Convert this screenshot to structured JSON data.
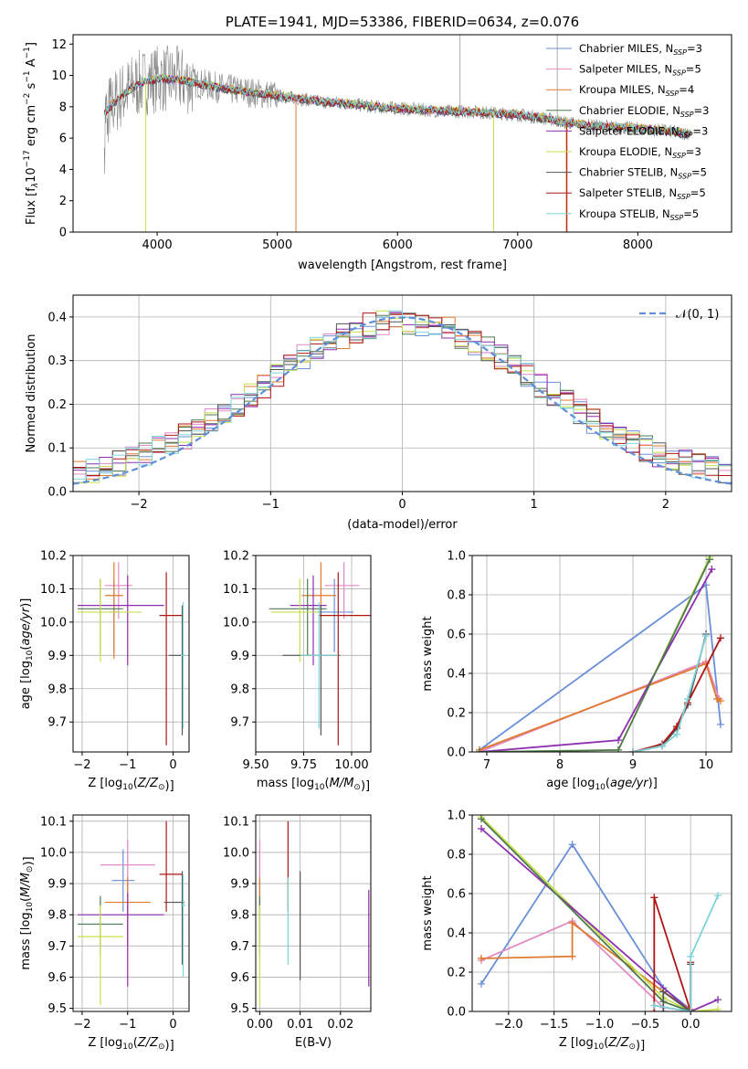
{
  "colors": {
    "chabrier_miles": "#6a8fd6",
    "salpeter_miles": "#e28ac3",
    "kroupa_miles": "#e07a2e",
    "chabrier_elodie": "#4f7a50",
    "salpeter_elodie": "#8f2fb0",
    "kroupa_elodie": "#c6e04a",
    "chabrier_stelib": "#555555",
    "salpeter_stelib": "#b01515",
    "kroupa_stelib": "#7dd3d8",
    "observed": "#888888",
    "normal": "#5f8fd8"
  },
  "chart_data": [
    {
      "id": "spectrum",
      "type": "line",
      "title": "PLATE=1941, MJD=53386, FIBERID=0634, z=0.076",
      "xlabel": "wavelength [Angstrom, rest frame]",
      "ylabel": "Flux [f",
      "ylabel_parts": [
        "Flux [f",
        "λ",
        "10",
        "−17",
        " erg cm",
        "−2",
        " s",
        "−1",
        " A",
        "−1",
        "]"
      ],
      "xlim": [
        3300,
        8780
      ],
      "ylim": [
        0,
        12.6
      ],
      "xticks": [
        4000,
        5000,
        6000,
        7000,
        8000
      ],
      "yticks": [
        0,
        2,
        4,
        6,
        8,
        10,
        12
      ],
      "grid": false,
      "legend_position": "top-right",
      "continuum": {
        "x": [
          3560,
          3700,
          3800,
          3900,
          4000,
          4200,
          4400,
          4600,
          4800,
          5000,
          5200,
          5400,
          5600,
          5800,
          6000,
          6200,
          6400,
          6600,
          6800,
          7000,
          7200,
          7400,
          7600,
          7800,
          8000,
          8200,
          8400
        ],
        "y": [
          7.6,
          8.7,
          9.3,
          9.6,
          9.8,
          9.7,
          9.4,
          9.1,
          8.9,
          8.7,
          8.5,
          8.3,
          8.2,
          8.0,
          7.9,
          7.8,
          7.7,
          7.7,
          7.6,
          7.5,
          7.3,
          7.0,
          6.8,
          6.7,
          6.6,
          6.5,
          6.3
        ]
      },
      "series": [
        {
          "label": "Chabrier MILES",
          "nssp": "3",
          "color": "#6a8fd6"
        },
        {
          "label": "Salpeter MILES",
          "nssp": "5",
          "color": "#e28ac3"
        },
        {
          "label": "Kroupa MILES",
          "nssp": "4",
          "color": "#e07a2e"
        },
        {
          "label": "Chabrier ELODIE",
          "nssp": "3",
          "color": "#4f7a50"
        },
        {
          "label": "Salpeter ELODIE",
          "nssp": "3",
          "color": "#8f2fb0"
        },
        {
          "label": "Kroupa ELODIE",
          "nssp": "3",
          "color": "#c6e04a"
        },
        {
          "label": "Chabrier STELIB",
          "nssp": "5",
          "color": "#555555"
        },
        {
          "label": "Salpeter STELIB",
          "nssp": "5",
          "color": "#b01515"
        },
        {
          "label": "Kroupa STELIB",
          "nssp": "5",
          "color": "#7dd3d8"
        }
      ],
      "legend_prefix_sub": "N",
      "legend_sub": "SSP"
    },
    {
      "id": "residuals",
      "type": "bar",
      "xlabel": "(data-model)/error",
      "ylabel": "Normed distribution",
      "xlim": [
        -2.5,
        2.5
      ],
      "ylim": [
        0,
        0.45
      ],
      "xticks": [
        -2,
        -1,
        0,
        1,
        2
      ],
      "yticks": [
        0.0,
        0.1,
        0.2,
        0.3,
        0.4
      ],
      "grid": true,
      "legend_position": "top-right",
      "normal_label": "𝒩(0, 1)",
      "bin_width": 0.1
    },
    {
      "id": "age-vs-z",
      "type": "scatter",
      "xlabel": "Z [log",
      "ylabel": "age  [log",
      "xlim": [
        -2.2,
        0.35
      ],
      "ylim": [
        9.61,
        10.2
      ],
      "xticks": [
        -2,
        -1,
        0
      ],
      "yticks": [
        9.7,
        9.8,
        9.9,
        10.0,
        10.1,
        10.2
      ],
      "grid": true,
      "points": [
        {
          "x": -1.3,
          "y": 10.03,
          "xerr": [
            0.1,
            0.1
          ],
          "yerr": [
            0.12,
            0.1
          ],
          "color": "#6a8fd6"
        },
        {
          "x": -1.2,
          "y": 10.11,
          "xerr": [
            0.3,
            0.3
          ],
          "yerr": [
            0.1,
            0.07
          ],
          "color": "#e28ac3"
        },
        {
          "x": -1.3,
          "y": 10.08,
          "xerr": [
            0.2,
            0.2
          ],
          "yerr": [
            0.19,
            0.1
          ],
          "color": "#e07a2e"
        },
        {
          "x": -1.6,
          "y": 10.04,
          "xerr": [
            0.5,
            0.5
          ],
          "yerr": [
            0.14,
            0.09
          ],
          "color": "#4f7a50"
        },
        {
          "x": -1.0,
          "y": 10.05,
          "xerr": [
            1.1,
            0.8
          ],
          "yerr": [
            0.18,
            0.09
          ],
          "color": "#8f2fb0"
        },
        {
          "x": -1.6,
          "y": 10.03,
          "xerr": [
            0.5,
            0.9
          ],
          "yerr": [
            0.15,
            0.1
          ],
          "color": "#c6e04a"
        },
        {
          "x": 0.2,
          "y": 9.9,
          "xerr": [
            0.3,
            0.05
          ],
          "yerr": [
            0.24,
            0.15
          ],
          "color": "#555555"
        },
        {
          "x": -0.15,
          "y": 10.02,
          "xerr": [
            0.15,
            0.35
          ],
          "yerr": [
            0.39,
            0.13
          ],
          "color": "#b01515"
        },
        {
          "x": 0.22,
          "y": 9.9,
          "xerr": [
            0.05,
            0.05
          ],
          "yerr": [
            0.22,
            0.16
          ],
          "color": "#7dd3d8"
        }
      ]
    },
    {
      "id": "age-vs-mass",
      "type": "scatter",
      "xlabel": "mass [log",
      "ylabel": "",
      "xlim": [
        9.5,
        10.1
      ],
      "ylim": [
        9.61,
        10.2
      ],
      "xticks": [
        9.5,
        9.75,
        10.0
      ],
      "tick_labels_x": [
        "9.50",
        "9.75",
        "10.00"
      ],
      "yticks": [
        9.7,
        9.8,
        9.9,
        10.0,
        10.1,
        10.2
      ],
      "grid": true,
      "points": [
        {
          "x": 9.91,
          "y": 10.03,
          "xerr": [
            0.1,
            0.1
          ],
          "yerr": [
            0.12,
            0.1
          ],
          "color": "#6a8fd6"
        },
        {
          "x": 9.96,
          "y": 10.11,
          "xerr": [
            0.1,
            0.08
          ],
          "yerr": [
            0.1,
            0.07
          ],
          "color": "#e28ac3"
        },
        {
          "x": 9.84,
          "y": 10.08,
          "xerr": [
            0.1,
            0.08
          ],
          "yerr": [
            0.19,
            0.1
          ],
          "color": "#e07a2e"
        },
        {
          "x": 9.77,
          "y": 10.04,
          "xerr": [
            0.2,
            0.1
          ],
          "yerr": [
            0.14,
            0.09
          ],
          "color": "#4f7a50"
        },
        {
          "x": 9.8,
          "y": 10.05,
          "xerr": [
            0.12,
            0.07
          ],
          "yerr": [
            0.18,
            0.09
          ],
          "color": "#8f2fb0"
        },
        {
          "x": 9.73,
          "y": 10.03,
          "xerr": [
            0.15,
            0.1
          ],
          "yerr": [
            0.15,
            0.1
          ],
          "color": "#c6e04a"
        },
        {
          "x": 9.84,
          "y": 9.9,
          "xerr": [
            0.2,
            0.1
          ],
          "yerr": [
            0.24,
            0.15
          ],
          "color": "#555555"
        },
        {
          "x": 9.93,
          "y": 10.02,
          "xerr": [
            0.1,
            0.17
          ],
          "yerr": [
            0.39,
            0.13
          ],
          "color": "#b01515"
        },
        {
          "x": 9.83,
          "y": 9.9,
          "xerr": [
            0.1,
            0.1
          ],
          "yerr": [
            0.22,
            0.16
          ],
          "color": "#7dd3d8"
        }
      ]
    },
    {
      "id": "massweight-vs-age",
      "type": "line",
      "xlabel": "age  [log",
      "ylabel": "mass weight",
      "xlim": [
        6.8,
        10.35
      ],
      "ylim": [
        0,
        1
      ],
      "xticks": [
        7,
        8,
        9,
        10
      ],
      "yticks": [
        0.0,
        0.2,
        0.4,
        0.6,
        0.8,
        1.0
      ],
      "grid": true,
      "series": [
        {
          "color": "#6a8fd6",
          "x": [
            6.9,
            10.0,
            10.2
          ],
          "y": [
            0.01,
            0.85,
            0.14
          ]
        },
        {
          "color": "#e28ac3",
          "x": [
            6.9,
            10.0,
            10.18
          ],
          "y": [
            0.0,
            0.46,
            0.27
          ]
        },
        {
          "color": "#e07a2e",
          "x": [
            6.9,
            10.0,
            10.15,
            10.2
          ],
          "y": [
            0.01,
            0.45,
            0.27,
            0.26
          ]
        },
        {
          "color": "#c6e04a",
          "x": [
            6.9,
            8.8,
            10.05
          ],
          "y": [
            0.0,
            0.01,
            0.99
          ]
        },
        {
          "color": "#8f2fb0",
          "x": [
            6.9,
            8.8,
            10.08
          ],
          "y": [
            0.0,
            0.06,
            0.93
          ]
        },
        {
          "color": "#4f7a50",
          "x": [
            6.9,
            8.8,
            10.05
          ],
          "y": [
            0.0,
            0.01,
            0.98
          ]
        },
        {
          "color": "#555555",
          "x": [
            9.0,
            9.4,
            9.6,
            9.75,
            10.0
          ],
          "y": [
            0.0,
            0.03,
            0.12,
            0.24,
            0.6
          ]
        },
        {
          "color": "#b01515",
          "x": [
            9.0,
            9.4,
            9.6,
            9.75,
            10.2
          ],
          "y": [
            0.0,
            0.04,
            0.13,
            0.25,
            0.58
          ]
        },
        {
          "color": "#7dd3d8",
          "x": [
            9.0,
            9.4,
            9.6,
            9.75,
            10.0
          ],
          "y": [
            0.0,
            0.03,
            0.09,
            0.27,
            0.59
          ]
        }
      ]
    },
    {
      "id": "mass-vs-z",
      "type": "scatter",
      "xlabel": "Z [log",
      "ylabel": "mass [log",
      "xlim": [
        -2.2,
        0.35
      ],
      "ylim": [
        9.49,
        10.12
      ],
      "xticks": [
        -2,
        -1,
        0
      ],
      "yticks": [
        9.5,
        9.6,
        9.7,
        9.8,
        9.9,
        10.0,
        10.1
      ],
      "grid": true,
      "points": [
        {
          "x": -1.1,
          "y": 9.91,
          "xerr": [
            0.25,
            0.25
          ],
          "yerr": [
            0.1,
            0.1
          ],
          "color": "#6a8fd6"
        },
        {
          "x": -1.0,
          "y": 9.96,
          "xerr": [
            0.6,
            0.6
          ],
          "yerr": [
            0.26,
            0.08
          ],
          "color": "#e28ac3"
        },
        {
          "x": -1.0,
          "y": 9.84,
          "xerr": [
            0.5,
            0.5
          ],
          "yerr": [
            0.14,
            0.08
          ],
          "color": "#e07a2e"
        },
        {
          "x": -1.6,
          "y": 9.77,
          "xerr": [
            0.5,
            0.5
          ],
          "yerr": [
            0.1,
            0.09
          ],
          "color": "#4f7a50"
        },
        {
          "x": -1.0,
          "y": 9.8,
          "xerr": [
            1.1,
            0.8
          ],
          "yerr": [
            0.23,
            0.07
          ],
          "color": "#8f2fb0"
        },
        {
          "x": -1.6,
          "y": 9.73,
          "xerr": [
            0.5,
            0.5
          ],
          "yerr": [
            0.22,
            0.1
          ],
          "color": "#c6e04a"
        },
        {
          "x": 0.2,
          "y": 9.84,
          "xerr": [
            0.4,
            0.05
          ],
          "yerr": [
            0.2,
            0.1
          ],
          "color": "#555555"
        },
        {
          "x": -0.15,
          "y": 9.93,
          "xerr": [
            0.15,
            0.35
          ],
          "yerr": [
            0.12,
            0.17
          ],
          "color": "#b01515"
        },
        {
          "x": 0.22,
          "y": 9.83,
          "xerr": [
            0.05,
            0.05
          ],
          "yerr": [
            0.23,
            0.1
          ],
          "color": "#7dd3d8"
        }
      ]
    },
    {
      "id": "mass-vs-ebv",
      "type": "scatter",
      "xlabel": "E(B-V)",
      "ylabel": "",
      "xlim": [
        -0.001,
        0.0275
      ],
      "ylim": [
        9.49,
        10.12
      ],
      "xticks": [
        0.0,
        0.01,
        0.02
      ],
      "tick_labels_x": [
        "0.00",
        "0.01",
        "0.02"
      ],
      "yticks": [
        9.5,
        9.6,
        9.7,
        9.8,
        9.9,
        10.0,
        10.1
      ],
      "grid": true,
      "points": [
        {
          "x": 0.0,
          "y": 9.91,
          "yerr": [
            0.1,
            0.1
          ],
          "color": "#6a8fd6"
        },
        {
          "x": 0.0,
          "y": 9.96,
          "yerr": [
            0.26,
            0.08
          ],
          "color": "#e28ac3"
        },
        {
          "x": 0.0,
          "y": 9.84,
          "yerr": [
            0.14,
            0.08
          ],
          "color": "#e07a2e"
        },
        {
          "x": 0.0,
          "y": 9.77,
          "yerr": [
            0.1,
            0.09
          ],
          "color": "#4f7a50"
        },
        {
          "x": 0.027,
          "y": 9.8,
          "yerr": [
            0.23,
            0.08
          ],
          "color": "#8f2fb0"
        },
        {
          "x": 0.0,
          "y": 9.73,
          "yerr": [
            0.22,
            0.1
          ],
          "color": "#c6e04a"
        },
        {
          "x": 0.01,
          "y": 9.84,
          "yerr": [
            0.25,
            0.1
          ],
          "color": "#555555"
        },
        {
          "x": 0.007,
          "y": 9.93,
          "yerr": [
            0.12,
            0.17
          ],
          "color": "#b01515"
        },
        {
          "x": 0.007,
          "y": 9.83,
          "yerr": [
            0.19,
            0.09
          ],
          "color": "#7dd3d8"
        }
      ]
    },
    {
      "id": "massweight-vs-z",
      "type": "line",
      "xlabel": "Z [log",
      "ylabel": "mass weight",
      "xlim": [
        -2.4,
        0.45
      ],
      "ylim": [
        0,
        1
      ],
      "xticks": [
        -2.0,
        -1.5,
        -1.0,
        -0.5,
        0.0
      ],
      "tick_labels_x": [
        "−2.0",
        "−1.5",
        "−1.0",
        "−0.5",
        "0.0"
      ],
      "yticks": [
        0.0,
        0.2,
        0.4,
        0.6,
        0.8,
        1.0
      ],
      "grid": true,
      "series": [
        {
          "color": "#6a8fd6",
          "x": [
            -2.3,
            -1.3,
            -0.3,
            0.0
          ],
          "y": [
            0.14,
            0.85,
            0.12,
            0.01
          ]
        },
        {
          "color": "#e28ac3",
          "x": [
            -2.3,
            -1.3,
            -0.3,
            0.0
          ],
          "y": [
            0.26,
            0.46,
            0.02,
            0.0
          ]
        },
        {
          "color": "#e07a2e",
          "x": [
            -2.3,
            -1.3,
            -1.3,
            -0.3,
            0.0
          ],
          "y": [
            0.27,
            0.28,
            0.45,
            0.1,
            0.01
          ]
        },
        {
          "color": "#c6e04a",
          "x": [
            -2.3,
            -0.3,
            0.0,
            0.3
          ],
          "y": [
            0.99,
            0.07,
            0.0,
            0.01
          ]
        },
        {
          "color": "#8f2fb0",
          "x": [
            -2.3,
            0.0,
            0.3
          ],
          "y": [
            0.93,
            0.0,
            0.06
          ]
        },
        {
          "color": "#4f7a50",
          "x": [
            -2.3,
            -0.3,
            0.0
          ],
          "y": [
            0.98,
            0.05,
            0.0
          ]
        },
        {
          "color": "#555555",
          "x": [
            -0.3,
            -0.3,
            0.0,
            0.0
          ],
          "y": [
            0.0,
            0.1,
            0.0,
            0.24
          ]
        },
        {
          "color": "#b01515",
          "x": [
            -0.4,
            -0.4,
            0.0,
            0.0
          ],
          "y": [
            0.0,
            0.58,
            0.0,
            0.25
          ]
        },
        {
          "color": "#7dd3d8",
          "x": [
            -0.4,
            0.0,
            0.0,
            0.3
          ],
          "y": [
            0.03,
            0.0,
            0.28,
            0.59
          ]
        }
      ]
    }
  ]
}
